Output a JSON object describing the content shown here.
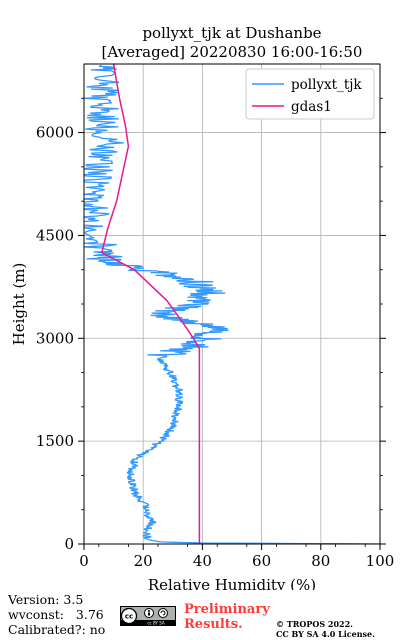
{
  "chart_data": {
    "type": "line",
    "title": "pollyxt_tjk at Dushanbe",
    "subtitle": "[Averaged] 20220830 16:00-16:50",
    "xlabel": "Relative Humidity (%)",
    "ylabel": "Height (m)",
    "xlim": [
      0,
      100
    ],
    "ylim": [
      0,
      7000
    ],
    "xticks": [
      0,
      20,
      40,
      60,
      80,
      100
    ],
    "yticks": [
      0,
      1500,
      3000,
      4500,
      6000
    ],
    "grid": true,
    "legend_position": "top-right",
    "series": [
      {
        "name": "pollyxt_tjk",
        "color": "#3399ff",
        "jitter": true,
        "points": [
          [
            100,
            0
          ],
          [
            40,
            15
          ],
          [
            26,
            30
          ],
          [
            22,
            60
          ],
          [
            21,
            120
          ],
          [
            21,
            200
          ],
          [
            22,
            260
          ],
          [
            23,
            300
          ],
          [
            23,
            350
          ],
          [
            22,
            400
          ],
          [
            21,
            450
          ],
          [
            21,
            500
          ],
          [
            21,
            550
          ],
          [
            20,
            600
          ],
          [
            19,
            650
          ],
          [
            18,
            700
          ],
          [
            17,
            750
          ],
          [
            17,
            800
          ],
          [
            16.5,
            850
          ],
          [
            16.5,
            900
          ],
          [
            16,
            950
          ],
          [
            16,
            1000
          ],
          [
            16,
            1050
          ],
          [
            16.5,
            1100
          ],
          [
            17,
            1150
          ],
          [
            17,
            1200
          ],
          [
            18,
            1250
          ],
          [
            19,
            1300
          ],
          [
            20,
            1330
          ],
          [
            22,
            1380
          ],
          [
            24,
            1450
          ],
          [
            26,
            1500
          ],
          [
            27,
            1550
          ],
          [
            28,
            1600
          ],
          [
            29,
            1650
          ],
          [
            30,
            1700
          ],
          [
            30,
            1750
          ],
          [
            31,
            1800
          ],
          [
            31,
            1850
          ],
          [
            31,
            1900
          ],
          [
            32,
            1950
          ],
          [
            32,
            2000
          ],
          [
            32,
            2050
          ],
          [
            32,
            2100
          ],
          [
            32,
            2150
          ],
          [
            32,
            2200
          ],
          [
            32,
            2250
          ],
          [
            31,
            2300
          ],
          [
            31,
            2350
          ],
          [
            30,
            2400
          ],
          [
            30,
            2450
          ],
          [
            29,
            2500
          ],
          [
            28,
            2550
          ],
          [
            28,
            2600
          ],
          [
            27,
            2650
          ],
          [
            26,
            2700
          ],
          [
            27,
            2750
          ],
          [
            30,
            2800
          ],
          [
            35,
            2850
          ],
          [
            38,
            2900
          ],
          [
            40,
            2950
          ],
          [
            41,
            3000
          ],
          [
            42,
            3050
          ],
          [
            43,
            3100
          ],
          [
            46,
            3150
          ],
          [
            40,
            3200
          ],
          [
            35,
            3250
          ],
          [
            30,
            3300
          ],
          [
            28,
            3350
          ],
          [
            30,
            3400
          ],
          [
            33,
            3450
          ],
          [
            37,
            3500
          ],
          [
            39,
            3550
          ],
          [
            40,
            3600
          ],
          [
            42,
            3650
          ],
          [
            41,
            3700
          ],
          [
            40,
            3750
          ],
          [
            38,
            3800
          ],
          [
            37,
            3850
          ],
          [
            32,
            3900
          ],
          [
            26,
            3950
          ],
          [
            20,
            4000
          ],
          [
            14,
            4050
          ],
          [
            9,
            4100
          ],
          [
            7,
            4150
          ],
          [
            7,
            4200
          ],
          [
            6,
            4250
          ],
          [
            5,
            4300
          ],
          [
            5,
            4400
          ],
          [
            5,
            4500
          ],
          [
            4,
            4600
          ],
          [
            4,
            4700
          ],
          [
            3,
            4800
          ],
          [
            3,
            4900
          ],
          [
            3,
            5000
          ],
          [
            2,
            5100
          ],
          [
            2,
            5200
          ],
          [
            3,
            5300
          ],
          [
            4,
            5400
          ],
          [
            5,
            5500
          ],
          [
            6,
            5600
          ],
          [
            7,
            5700
          ],
          [
            9,
            5800
          ],
          [
            8,
            5900
          ],
          [
            7,
            6000
          ],
          [
            6,
            6100
          ],
          [
            6,
            6200
          ],
          [
            7,
            6300
          ],
          [
            6,
            6400
          ],
          [
            5,
            6500
          ],
          [
            6,
            6600
          ],
          [
            7,
            6700
          ],
          [
            8,
            6800
          ],
          [
            7,
            6900
          ],
          [
            6,
            6980
          ]
        ]
      },
      {
        "name": "gdas1",
        "color": "#e8198b",
        "jitter": false,
        "points": [
          [
            39,
            0
          ],
          [
            39,
            1000
          ],
          [
            39,
            2000
          ],
          [
            39,
            2850
          ],
          [
            37,
            3000
          ],
          [
            33,
            3250
          ],
          [
            28,
            3550
          ],
          [
            17,
            4000
          ],
          [
            6,
            4250
          ],
          [
            8,
            4600
          ],
          [
            11,
            5000
          ],
          [
            13,
            5400
          ],
          [
            15,
            5800
          ],
          [
            14,
            6100
          ],
          [
            12,
            6500
          ],
          [
            10,
            7000
          ]
        ]
      }
    ]
  },
  "footer": {
    "version_text": "Version: 3.5\nwvconst:   3.76\nCalibrated?: no",
    "cc_label": "cc BY SA",
    "preliminary_line1": "Preliminary",
    "preliminary_line2": "Results.",
    "copyright_line1": "© TROPOS 2022.",
    "copyright_line2": "CC BY SA 4.0 License."
  }
}
